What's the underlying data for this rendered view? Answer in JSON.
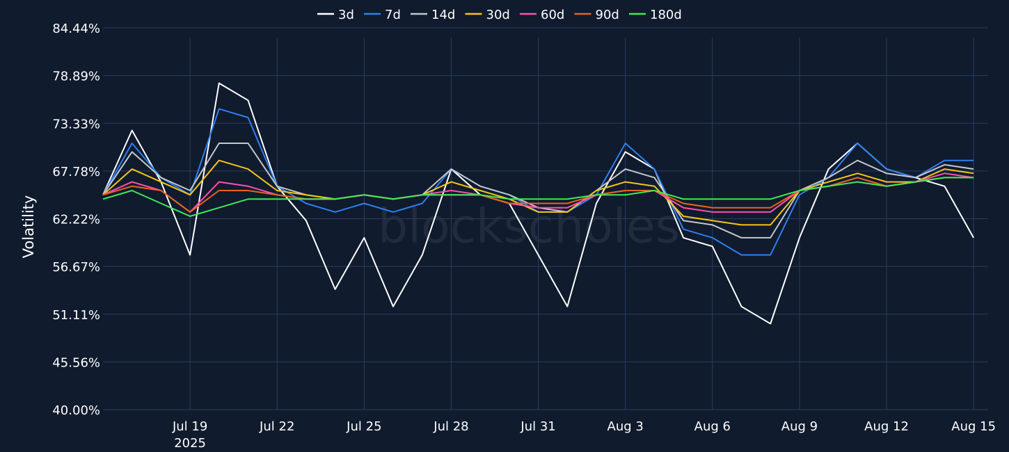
{
  "chart_data": {
    "type": "line",
    "ylabel": "Volatility",
    "y_unit": "%",
    "ylim": [
      40.0,
      84.44
    ],
    "y_ticks": [
      40.0,
      45.56,
      51.11,
      56.67,
      62.22,
      67.78,
      73.33,
      78.89,
      84.44
    ],
    "y_tick_labels": [
      "40.00%",
      "45.56%",
      "51.11%",
      "56.67%",
      "62.22%",
      "67.78%",
      "73.33%",
      "78.89%",
      "84.44%"
    ],
    "x_range": [
      "2025-07-16T00:00",
      "2025-08-15T12:00"
    ],
    "x_ticks": [
      "2025-07-19",
      "2025-07-22",
      "2025-07-25",
      "2025-07-28",
      "2025-07-31",
      "2025-08-03",
      "2025-08-06",
      "2025-08-09",
      "2025-08-12",
      "2025-08-15"
    ],
    "x_tick_labels": [
      "Jul 19",
      "Jul 22",
      "Jul 25",
      "Jul 28",
      "Jul 31",
      "Aug 3",
      "Aug 6",
      "Aug 9",
      "Aug 12",
      "Aug 15"
    ],
    "x_tick_sublabel": "2025",
    "grid": true,
    "legend_position": "top",
    "watermark": "blockscholes",
    "x": [
      "2025-07-16",
      "2025-07-17",
      "2025-07-18",
      "2025-07-19",
      "2025-07-20",
      "2025-07-21",
      "2025-07-22",
      "2025-07-23",
      "2025-07-24",
      "2025-07-25",
      "2025-07-26",
      "2025-07-27",
      "2025-07-28",
      "2025-07-29",
      "2025-07-30",
      "2025-07-31",
      "2025-08-01",
      "2025-08-02",
      "2025-08-03",
      "2025-08-04",
      "2025-08-05",
      "2025-08-06",
      "2025-08-07",
      "2025-08-08",
      "2025-08-09",
      "2025-08-10",
      "2025-08-11",
      "2025-08-12",
      "2025-08-13",
      "2025-08-14",
      "2025-08-15"
    ],
    "series": [
      {
        "name": "3d",
        "color": "#ffffff",
        "values": [
          65.0,
          72.5,
          66.5,
          58.0,
          78.0,
          76.0,
          66.0,
          62.0,
          54.0,
          60.0,
          52.0,
          58.0,
          68.0,
          65.0,
          64.0,
          58.0,
          52.0,
          64.0,
          70.0,
          68.0,
          60.0,
          59.0,
          52.0,
          50.0,
          60.0,
          68.0,
          71.0,
          68.0,
          67.0,
          66.0,
          60.0
        ]
      },
      {
        "name": "7d",
        "color": "#2f7ff0",
        "values": [
          65.0,
          71.0,
          67.0,
          65.0,
          75.0,
          74.0,
          66.0,
          64.0,
          63.0,
          64.0,
          63.0,
          64.0,
          68.0,
          66.0,
          65.0,
          63.0,
          63.0,
          65.0,
          71.0,
          68.0,
          61.0,
          60.0,
          58.0,
          58.0,
          65.0,
          67.0,
          71.0,
          68.0,
          67.0,
          69.0,
          69.0
        ]
      },
      {
        "name": "14d",
        "color": "#c4c8cf",
        "values": [
          65.0,
          70.0,
          67.0,
          65.5,
          71.0,
          71.0,
          66.0,
          65.0,
          64.5,
          65.0,
          64.5,
          65.0,
          68.0,
          66.0,
          65.0,
          63.5,
          63.0,
          65.5,
          68.0,
          67.0,
          62.0,
          61.5,
          60.0,
          60.0,
          65.5,
          67.0,
          69.0,
          67.5,
          67.0,
          68.5,
          68.0
        ]
      },
      {
        "name": "30d",
        "color": "#f5c518",
        "values": [
          65.0,
          68.0,
          66.5,
          65.0,
          69.0,
          68.0,
          65.5,
          65.0,
          64.5,
          65.0,
          64.5,
          65.0,
          66.5,
          65.5,
          64.5,
          63.0,
          63.0,
          65.5,
          66.5,
          66.0,
          62.5,
          62.0,
          61.5,
          61.5,
          65.5,
          66.5,
          67.5,
          66.5,
          66.5,
          68.0,
          67.5
        ]
      },
      {
        "name": "60d",
        "color": "#ff4fb0",
        "values": [
          65.0,
          66.5,
          65.5,
          63.0,
          66.5,
          66.0,
          65.0,
          64.5,
          64.5,
          65.0,
          64.5,
          65.0,
          65.5,
          65.0,
          64.0,
          63.5,
          63.5,
          65.0,
          65.5,
          65.5,
          63.5,
          63.0,
          63.0,
          63.0,
          65.5,
          66.0,
          67.0,
          66.0,
          66.5,
          67.5,
          67.0
        ]
      },
      {
        "name": "90d",
        "color": "#e8641e",
        "values": [
          65.0,
          66.0,
          65.5,
          63.0,
          65.5,
          65.5,
          65.0,
          64.5,
          64.5,
          65.0,
          64.5,
          65.0,
          65.0,
          65.0,
          64.0,
          64.0,
          64.0,
          65.0,
          65.5,
          65.5,
          64.0,
          63.5,
          63.5,
          63.5,
          65.5,
          66.0,
          67.0,
          66.0,
          66.5,
          67.0,
          67.0
        ]
      },
      {
        "name": "180d",
        "color": "#3fea5a",
        "values": [
          64.5,
          65.5,
          64.0,
          62.5,
          63.5,
          64.5,
          64.5,
          64.5,
          64.5,
          65.0,
          64.5,
          65.0,
          65.0,
          65.0,
          64.5,
          64.5,
          64.5,
          65.0,
          65.0,
          65.5,
          64.5,
          64.5,
          64.5,
          64.5,
          65.5,
          66.0,
          66.5,
          66.0,
          66.5,
          67.0,
          67.0
        ]
      }
    ]
  }
}
